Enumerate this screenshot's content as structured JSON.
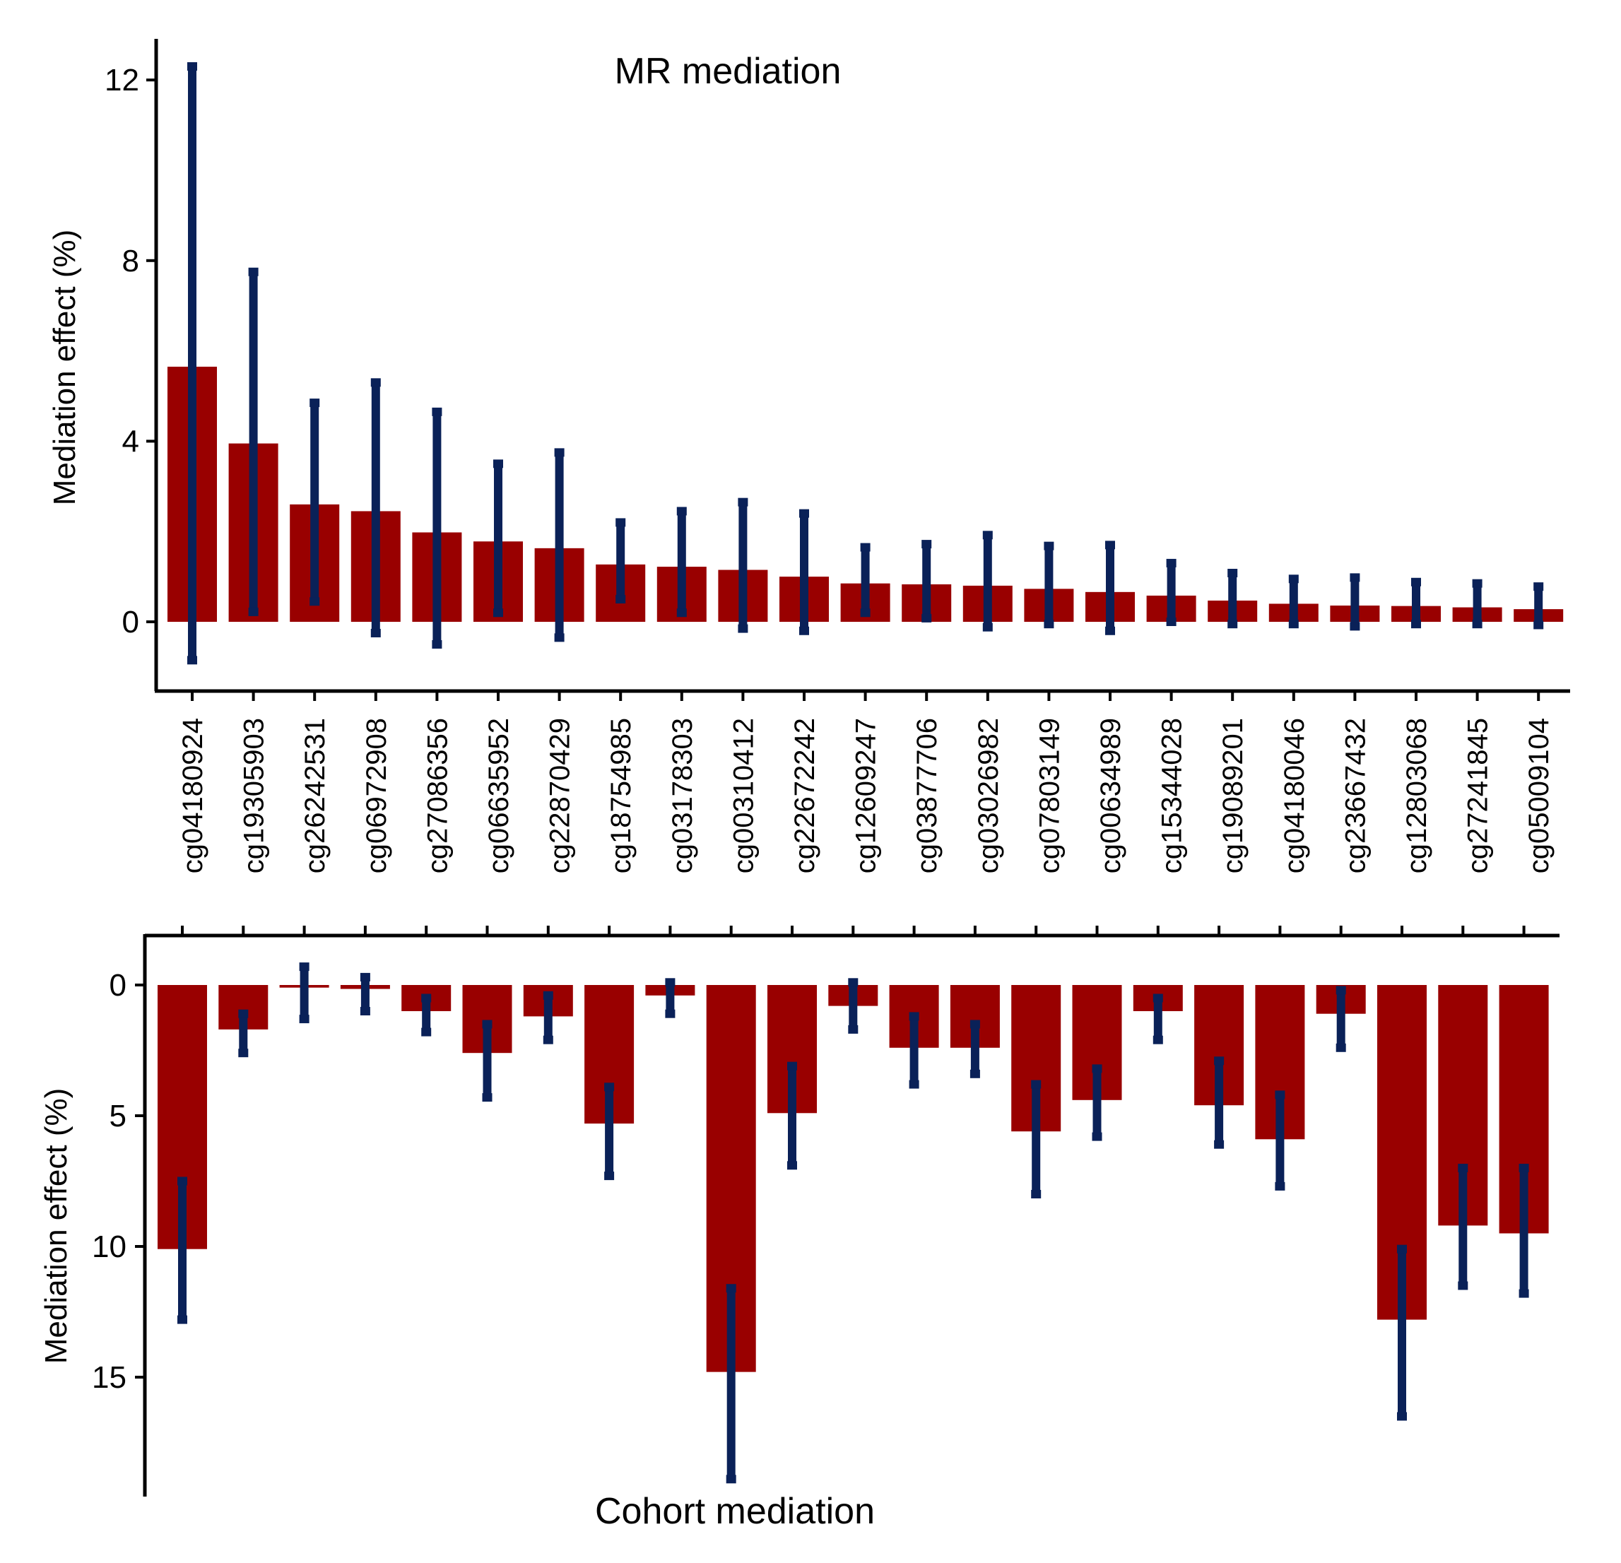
{
  "colors": {
    "bar": "#990000",
    "errorbar": "#0a2158",
    "axis": "#000000"
  },
  "chart_data": [
    {
      "type": "bar",
      "title": "MR mediation",
      "xlabel": "",
      "ylabel": "Mediation effect (%)",
      "ylim": [
        -1.5,
        13
      ],
      "yticks": [
        0,
        4,
        8,
        12
      ],
      "categories": [
        "cg04180924",
        "cg19305903",
        "cg26242531",
        "cg06972908",
        "cg27086356",
        "cg06635952",
        "cg22870429",
        "cg18754985",
        "cg03178303",
        "cg00310412",
        "cg22672242",
        "cg12609247",
        "cg03877706",
        "cg03026982",
        "cg07803149",
        "cg00634989",
        "cg15344028",
        "cg19089201",
        "cg04180046",
        "cg23667432",
        "cg12803068",
        "cg27241845",
        "cg05009104"
      ],
      "values": [
        5.65,
        3.95,
        2.6,
        2.45,
        1.98,
        1.78,
        1.63,
        1.27,
        1.22,
        1.15,
        1.0,
        0.85,
        0.83,
        0.8,
        0.73,
        0.66,
        0.58,
        0.47,
        0.4,
        0.36,
        0.35,
        0.32,
        0.28
      ],
      "error_low": [
        -0.85,
        0.22,
        0.45,
        -0.25,
        -0.5,
        0.2,
        -0.35,
        0.5,
        0.2,
        -0.15,
        -0.2,
        0.2,
        0.08,
        -0.12,
        -0.05,
        -0.2,
        0.0,
        -0.05,
        -0.05,
        -0.1,
        -0.05,
        -0.05,
        -0.07
      ],
      "error_high": [
        12.3,
        7.75,
        4.85,
        5.3,
        4.65,
        3.5,
        3.75,
        2.2,
        2.45,
        2.65,
        2.4,
        1.65,
        1.72,
        1.92,
        1.68,
        1.7,
        1.3,
        1.08,
        0.95,
        0.98,
        0.88,
        0.85,
        0.78
      ]
    },
    {
      "type": "bar",
      "title": "Cohort mediation",
      "xlabel": "",
      "ylabel": "Mediation effect (%)",
      "ylim": [
        -1.5,
        19.5
      ],
      "y_axis_reversed": true,
      "yticks": [
        0,
        5,
        10,
        15
      ],
      "categories": [
        "cg04180924",
        "cg19305903",
        "cg26242531",
        "cg06972908",
        "cg27086356",
        "cg06635952",
        "cg22870429",
        "cg18754985",
        "cg03178303",
        "cg00310412",
        "cg22672242",
        "cg12609247",
        "cg03877706",
        "cg03026982",
        "cg07803149",
        "cg00634989",
        "cg15344028",
        "cg19089201",
        "cg04180046",
        "cg23667432",
        "cg12803068",
        "cg27241845",
        "cg05009104"
      ],
      "values": [
        10.1,
        1.7,
        0.1,
        0.15,
        1.0,
        2.6,
        1.2,
        5.3,
        0.4,
        14.8,
        4.9,
        0.8,
        2.4,
        2.4,
        5.6,
        4.4,
        1.0,
        4.6,
        5.9,
        1.1,
        12.8,
        9.2,
        9.5
      ],
      "error_low": [
        7.5,
        1.1,
        -0.7,
        -0.3,
        0.5,
        1.5,
        0.4,
        3.9,
        -0.1,
        11.6,
        3.1,
        -0.1,
        1.2,
        1.5,
        3.8,
        3.2,
        0.5,
        2.9,
        4.2,
        0.2,
        10.1,
        7.0,
        7.0
      ],
      "error_high": [
        12.8,
        2.6,
        1.3,
        1.0,
        1.8,
        4.3,
        2.1,
        7.3,
        1.1,
        18.9,
        6.9,
        1.7,
        3.8,
        3.4,
        8.0,
        5.8,
        2.1,
        6.1,
        7.7,
        2.4,
        16.5,
        11.5,
        11.8
      ]
    }
  ]
}
